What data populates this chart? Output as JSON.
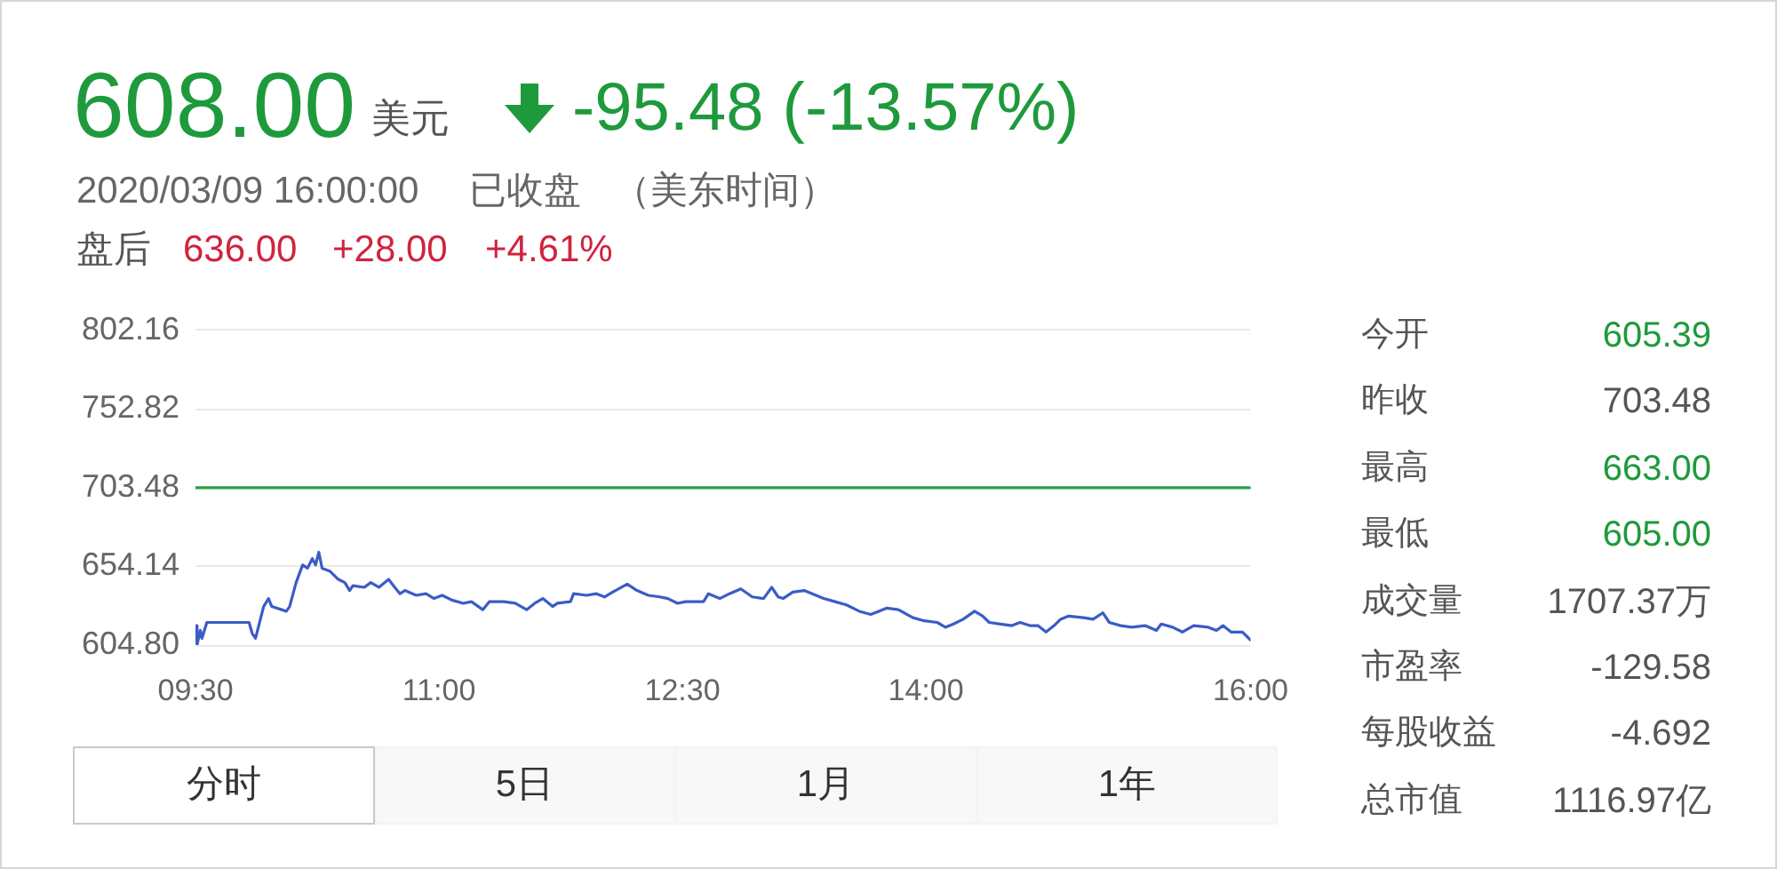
{
  "chart_data": [
    {
      "type": "other",
      "annotations": [
        "608.00",
        "美元",
        "-95.48 (-13.57%)",
        "2020/03/09 16:00:00",
        "已收盘",
        "（美东时间）",
        "盘后",
        "636.00",
        "+28.00",
        "+4.61%"
      ],
      "colors": [
        "#1e9a3c",
        "#555555",
        "#1e9a3c",
        "#666666",
        "#666666",
        "#666666",
        "#555555",
        "#d0233f",
        "#d0233f",
        "#d0233f"
      ]
    },
    {
      "type": "line",
      "x": [
        9.5,
        9.51,
        9.53,
        9.54,
        9.57,
        9.83,
        9.85,
        9.87,
        9.92,
        9.95,
        9.97,
        10.03,
        10.06,
        10.08,
        10.12,
        10.16,
        10.19,
        10.22,
        10.24,
        10.26,
        10.28,
        10.33,
        10.38,
        10.42,
        10.45,
        10.47,
        10.54,
        10.58,
        10.63,
        10.69,
        10.72,
        10.76,
        10.79,
        10.86,
        10.92,
        10.97,
        11.02,
        11.08,
        11.15,
        11.2,
        11.27,
        11.31,
        11.4,
        11.47,
        11.54,
        11.59,
        11.64,
        11.7,
        11.73,
        11.81,
        11.83,
        11.91,
        11.97,
        12.02,
        12.07,
        12.16,
        12.22,
        12.29,
        12.36,
        12.41,
        12.47,
        12.52,
        12.63,
        12.66,
        12.73,
        12.79,
        12.86,
        12.93,
        13.0,
        13.05,
        13.09,
        13.12,
        13.18,
        13.25,
        13.3,
        13.37,
        13.44,
        13.51,
        13.59,
        13.66,
        13.71,
        13.76,
        13.83,
        13.92,
        13.99,
        14.07,
        14.12,
        14.17,
        14.23,
        14.3,
        14.35,
        14.39,
        14.46,
        14.53,
        14.58,
        14.64,
        14.69,
        14.74,
        14.79,
        14.83,
        14.88,
        14.97,
        15.03,
        15.09,
        15.13,
        15.2,
        15.27,
        15.35,
        15.42,
        15.45,
        15.52,
        15.58,
        15.65,
        15.74,
        15.79,
        15.83,
        15.88,
        15.95,
        16.0
      ],
      "values": [
        617,
        605,
        614,
        609,
        619,
        619,
        612,
        609,
        629,
        634,
        629,
        627,
        626,
        629,
        644,
        655,
        653,
        659,
        655,
        663,
        653,
        651,
        646,
        644,
        639,
        642,
        641,
        644,
        641,
        646,
        642,
        637,
        639,
        636,
        637,
        634,
        636,
        633,
        631,
        632,
        627,
        632,
        632,
        631,
        627,
        631,
        634,
        629,
        631,
        632,
        637,
        636,
        637,
        635,
        638,
        643,
        639,
        636,
        635,
        634,
        631,
        632,
        632,
        637,
        634,
        637,
        640,
        635,
        634,
        641,
        635,
        634,
        638,
        639,
        637,
        634,
        632,
        630,
        626,
        624,
        626,
        628,
        627,
        622,
        620,
        619,
        616,
        618,
        621,
        626,
        623,
        619,
        618,
        617,
        619,
        617,
        617,
        613,
        617,
        621,
        623,
        622,
        621,
        625,
        619,
        617,
        616,
        617,
        614,
        618,
        616,
        613,
        617,
        616,
        614,
        617,
        613,
        613,
        608
      ],
      "color": "#3b5cc6",
      "xlim": [
        9.5,
        16
      ],
      "xticks": [
        {
          "value": 9.5,
          "label": "09:30"
        },
        {
          "value": 11,
          "label": "11:00"
        },
        {
          "value": 12.5,
          "label": "12:30"
        },
        {
          "value": 14,
          "label": "14:00"
        },
        {
          "value": 16,
          "label": "16:00"
        }
      ],
      "ylim": [
        604.8,
        802.16
      ],
      "yticks": [
        {
          "value": 604.8,
          "label": "604.80"
        },
        654.14,
        703.48,
        752.82,
        802.16
      ],
      "grid": "y",
      "ref_lines": [
        {
          "axis": "y",
          "value": 703.48,
          "color": "#2b9b47"
        }
      ]
    },
    {
      "type": "other",
      "annotations": [
        "今开",
        "605.39",
        "昨收",
        "703.48",
        "最高",
        "663.00",
        "最低",
        "605.00",
        "成交量",
        "1707.37万",
        "市盈率",
        "-129.58",
        "每股收益",
        "-4.692",
        "总市值",
        "1116.97亿"
      ],
      "colors": [
        "#555555",
        "#1e9a3c",
        "#555555",
        "#555555",
        "#555555",
        "#1e9a3c",
        "#555555",
        "#1e9a3c",
        "#555555",
        "#555555",
        "#555555",
        "#555555",
        "#555555",
        "#555555",
        "#555555",
        "#555555"
      ]
    },
    {
      "type": "other",
      "annotations": [
        "分时",
        "5日",
        "1月",
        "1年"
      ]
    }
  ]
}
